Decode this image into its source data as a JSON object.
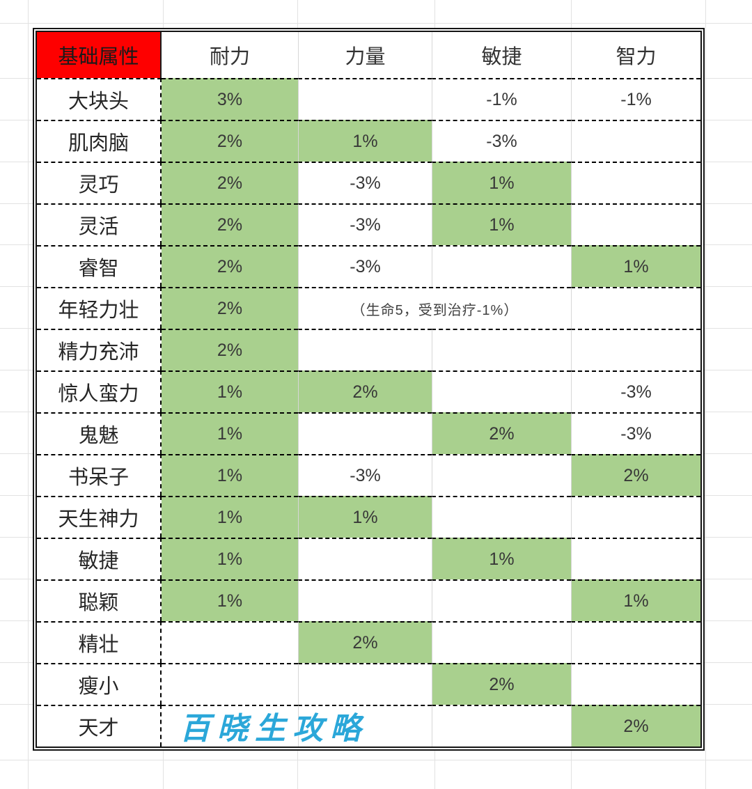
{
  "table": {
    "header": {
      "corner": "基础属性",
      "columns": [
        "耐力",
        "力量",
        "敏捷",
        "智力"
      ]
    },
    "rows": [
      {
        "label": "大块头",
        "cells": [
          {
            "text": "3%",
            "green": true
          },
          {
            "text": ""
          },
          {
            "text": "-1%"
          },
          {
            "text": "-1%"
          }
        ]
      },
      {
        "label": "肌肉脑",
        "cells": [
          {
            "text": "2%",
            "green": true
          },
          {
            "text": "1%",
            "green": true
          },
          {
            "text": "-3%"
          },
          {
            "text": ""
          }
        ]
      },
      {
        "label": "灵巧",
        "cells": [
          {
            "text": "2%",
            "green": true
          },
          {
            "text": "-3%"
          },
          {
            "text": "1%",
            "green": true
          },
          {
            "text": ""
          }
        ]
      },
      {
        "label": "灵活",
        "cells": [
          {
            "text": "2%",
            "green": true
          },
          {
            "text": "-3%"
          },
          {
            "text": "1%",
            "green": true
          },
          {
            "text": ""
          }
        ]
      },
      {
        "label": "睿智",
        "cells": [
          {
            "text": "2%",
            "green": true
          },
          {
            "text": "-3%"
          },
          {
            "text": ""
          },
          {
            "text": "1%",
            "green": true
          }
        ]
      },
      {
        "label": "年轻力壮",
        "cells": [
          {
            "text": "2%",
            "green": true
          },
          {
            "text": "（生命5，受到治疗-1%）",
            "span": 2,
            "note": true
          },
          {
            "text": ""
          }
        ]
      },
      {
        "label": "精力充沛",
        "cells": [
          {
            "text": "2%",
            "green": true
          },
          {
            "text": ""
          },
          {
            "text": ""
          },
          {
            "text": ""
          }
        ]
      },
      {
        "label": "惊人蛮力",
        "cells": [
          {
            "text": "1%",
            "green": true
          },
          {
            "text": "2%",
            "green": true
          },
          {
            "text": ""
          },
          {
            "text": "-3%"
          }
        ]
      },
      {
        "label": "鬼魅",
        "cells": [
          {
            "text": "1%",
            "green": true
          },
          {
            "text": ""
          },
          {
            "text": "2%",
            "green": true
          },
          {
            "text": "-3%"
          }
        ]
      },
      {
        "label": "书呆子",
        "cells": [
          {
            "text": "1%",
            "green": true
          },
          {
            "text": "-3%"
          },
          {
            "text": ""
          },
          {
            "text": "2%",
            "green": true
          }
        ]
      },
      {
        "label": "天生神力",
        "cells": [
          {
            "text": "1%",
            "green": true
          },
          {
            "text": "1%",
            "green": true
          },
          {
            "text": ""
          },
          {
            "text": ""
          }
        ]
      },
      {
        "label": "敏捷",
        "cells": [
          {
            "text": "1%",
            "green": true
          },
          {
            "text": ""
          },
          {
            "text": "1%",
            "green": true
          },
          {
            "text": ""
          }
        ]
      },
      {
        "label": "聪颖",
        "cells": [
          {
            "text": "1%",
            "green": true
          },
          {
            "text": ""
          },
          {
            "text": ""
          },
          {
            "text": "1%",
            "green": true
          }
        ]
      },
      {
        "label": "精壮",
        "cells": [
          {
            "text": ""
          },
          {
            "text": "2%",
            "green": true
          },
          {
            "text": ""
          },
          {
            "text": ""
          }
        ]
      },
      {
        "label": "瘦小",
        "cells": [
          {
            "text": ""
          },
          {
            "text": ""
          },
          {
            "text": "2%",
            "green": true
          },
          {
            "text": ""
          }
        ]
      },
      {
        "label": "天才",
        "cells": [
          {
            "text": ""
          },
          {
            "text": ""
          },
          {
            "text": ""
          },
          {
            "text": "2%",
            "green": true
          }
        ]
      }
    ]
  },
  "watermark": {
    "text": "百晓生攻略"
  },
  "colors": {
    "header_fill": "#fe0000",
    "highlight_fill": "#a9d08e",
    "watermark_blue": "#2ba7d9",
    "dashed_border": "#000000",
    "gridline_gray": "#e2e2e2"
  }
}
